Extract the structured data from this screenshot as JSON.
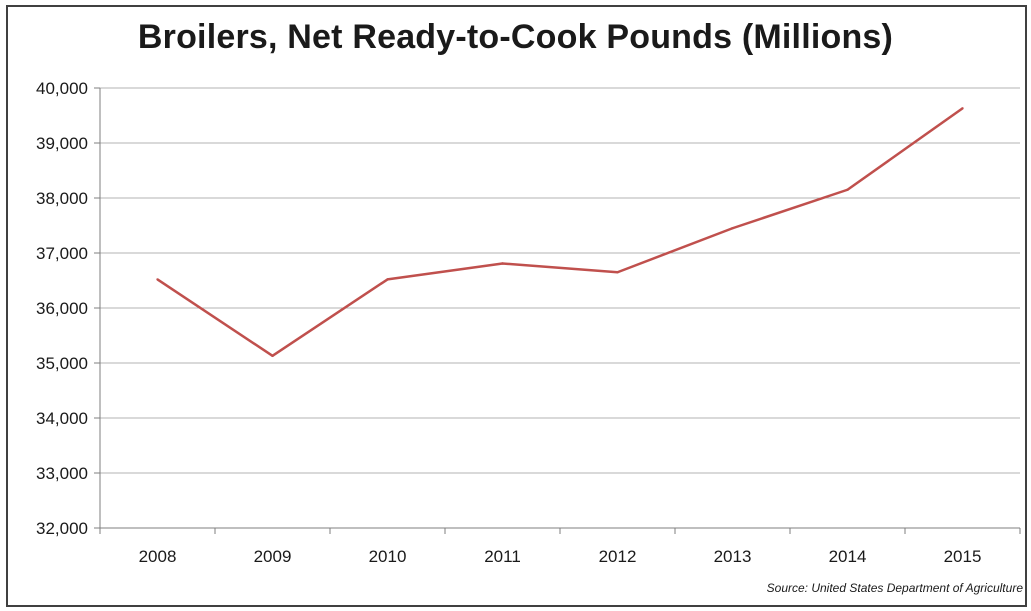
{
  "chart_data": {
    "type": "line",
    "title": "Broilers, Net Ready-to-Cook Pounds (Millions)",
    "source": "Source:  United States Department of Agriculture",
    "categories": [
      "2008",
      "2009",
      "2010",
      "2011",
      "2012",
      "2013",
      "2014",
      "2015"
    ],
    "series": [
      {
        "values": [
          36520,
          35130,
          36520,
          36810,
          36650,
          37450,
          38150,
          39630
        ]
      }
    ],
    "y_tick_labels": [
      "32,000",
      "33,000",
      "34,000",
      "35,000",
      "36,000",
      "37,000",
      "38,000",
      "39,000",
      "40,000"
    ],
    "ylim": [
      32000,
      40000
    ],
    "y_step": 1000,
    "grid": "horizontal",
    "line_color": "#c0504d",
    "grid_color": "#b3b3b3",
    "axis_color": "#7f7f7f"
  }
}
